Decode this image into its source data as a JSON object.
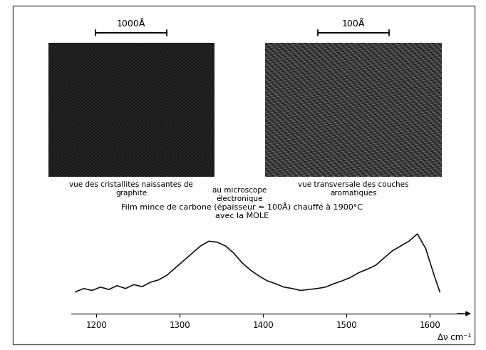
{
  "images": [
    {
      "scale_bar": "1000Å",
      "caption": [
        "vue des cristallites naissantes de",
        "graphite"
      ]
    },
    {
      "scale_bar": "100Å",
      "caption": [
        "vue transversale des couches",
        "aromatiques"
      ]
    }
  ],
  "center_text": [
    "au microscope",
    "électronique"
  ],
  "caption": [
    "Film mince de carbone (épaisseur ≃ 100Å) chauffé à 1900°C",
    "avec la MOLE"
  ],
  "chart_data": {
    "type": "line",
    "x_label": "Δν cm⁻¹",
    "x": [
      1175,
      1185,
      1195,
      1205,
      1215,
      1225,
      1235,
      1245,
      1255,
      1265,
      1275,
      1285,
      1295,
      1305,
      1315,
      1325,
      1335,
      1345,
      1355,
      1365,
      1375,
      1385,
      1395,
      1405,
      1415,
      1425,
      1435,
      1445,
      1455,
      1465,
      1475,
      1485,
      1495,
      1505,
      1515,
      1525,
      1535,
      1545,
      1555,
      1565,
      1575,
      1585,
      1595,
      1605,
      1612
    ],
    "values": [
      45,
      52,
      48,
      55,
      50,
      58,
      52,
      60,
      56,
      65,
      70,
      80,
      95,
      110,
      125,
      140,
      150,
      148,
      140,
      125,
      105,
      90,
      78,
      68,
      62,
      55,
      52,
      48,
      50,
      52,
      55,
      62,
      68,
      75,
      85,
      92,
      100,
      115,
      130,
      140,
      150,
      165,
      135,
      80,
      45
    ],
    "color": "#111111",
    "xlim": [
      1170,
      1640
    ],
    "ylim": [
      0,
      180
    ],
    "xticks": [
      1200,
      1300,
      1400,
      1500,
      1600
    ],
    "tick_labels": "x"
  }
}
